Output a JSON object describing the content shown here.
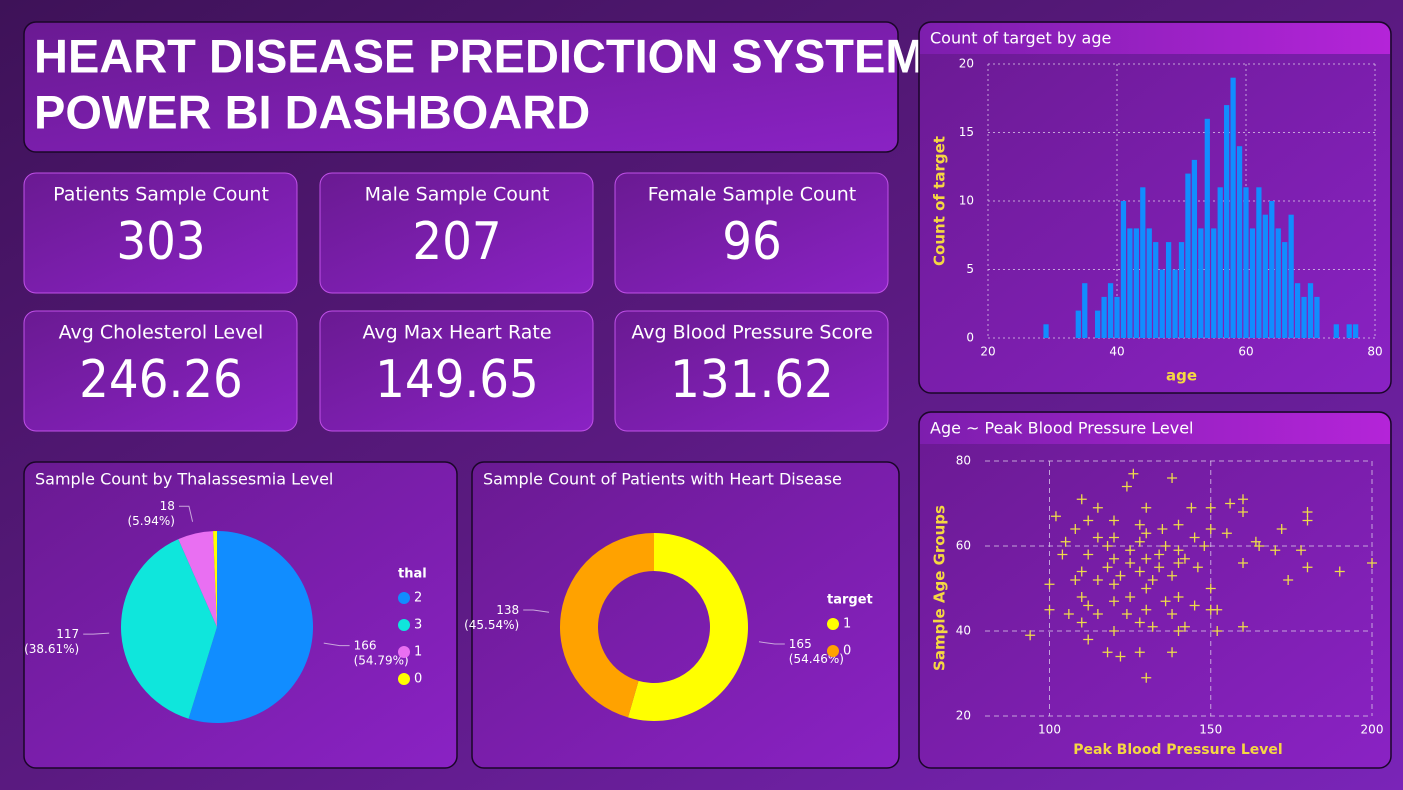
{
  "header": {
    "title_line1": "HEART DISEASE PREDICTION SYSTEM",
    "title_line2": "POWER BI DASHBOARD"
  },
  "cards": [
    {
      "label": "Patients Sample Count",
      "value": 303
    },
    {
      "label": "Male Sample Count",
      "value": 207
    },
    {
      "label": "Female Sample Count",
      "value": 96
    },
    {
      "label": "Avg Cholesterol Level",
      "value": 246.26
    },
    {
      "label": "Avg Max Heart Rate",
      "value": 149.65
    },
    {
      "label": "Avg Blood Pressure Score",
      "value": 131.62
    }
  ],
  "chart_data": [
    {
      "type": "pie",
      "title": "Sample Count by Thalassesmia Level",
      "legend_title": "thal",
      "categories": [
        "2",
        "3",
        "1",
        "0"
      ],
      "values": [
        166,
        117,
        18,
        2
      ],
      "value_labels": [
        "166 (54.79%)",
        "117 (38.61%)",
        "18 (5.94%)",
        null
      ],
      "colors": [
        "#118dff",
        "#0fe6dc",
        "#e96ff2",
        "#ffff00"
      ]
    },
    {
      "type": "donut",
      "title": "Sample Count of Patients with Heart Disease",
      "legend_title": "target",
      "categories": [
        "1",
        "0"
      ],
      "values": [
        165,
        138
      ],
      "value_labels": [
        "165 (54.46%)",
        "138 (45.54%)"
      ],
      "colors": [
        "#ffff00",
        "#ffa200"
      ]
    },
    {
      "type": "histogram",
      "title": "Count of target by age",
      "xlabel": "age",
      "ylabel": "Count of target",
      "color": "#118dff",
      "x": [
        29,
        34,
        35,
        37,
        38,
        39,
        40,
        41,
        42,
        43,
        44,
        45,
        46,
        47,
        48,
        49,
        50,
        51,
        52,
        53,
        54,
        55,
        56,
        57,
        58,
        59,
        60,
        61,
        62,
        63,
        64,
        65,
        66,
        67,
        68,
        69,
        70,
        71,
        74,
        76,
        77
      ],
      "values": [
        1,
        2,
        4,
        2,
        3,
        4,
        3,
        10,
        8,
        8,
        11,
        8,
        7,
        5,
        7,
        5,
        7,
        12,
        13,
        8,
        16,
        8,
        11,
        17,
        19,
        14,
        11,
        8,
        11,
        9,
        10,
        8,
        7,
        9,
        4,
        3,
        4,
        3,
        1,
        1,
        1
      ],
      "xlim": [
        20,
        80
      ],
      "xticks": [
        20,
        40,
        60,
        80
      ],
      "ylim": [
        0,
        20
      ],
      "yticks": [
        0,
        5,
        10,
        15,
        20
      ],
      "grid": true
    },
    {
      "type": "scatter",
      "title": "Age ~ Peak Blood Pressure Level",
      "xlabel": "Peak Blood Pressure Level",
      "ylabel": "Sample Age Groups",
      "color": "#eedc4a",
      "x": [
        94,
        100,
        100,
        102,
        104,
        105,
        106,
        108,
        108,
        110,
        110,
        110,
        110,
        112,
        112,
        112,
        112,
        115,
        115,
        115,
        115,
        118,
        118,
        118,
        120,
        120,
        120,
        120,
        120,
        120,
        122,
        122,
        124,
        124,
        125,
        125,
        125,
        126,
        128,
        128,
        128,
        128,
        128,
        130,
        130,
        130,
        130,
        130,
        130,
        132,
        132,
        134,
        134,
        135,
        136,
        136,
        138,
        138,
        138,
        138,
        140,
        140,
        140,
        140,
        140,
        142,
        142,
        144,
        145,
        145,
        146,
        148,
        150,
        150,
        150,
        150,
        152,
        152,
        155,
        156,
        160,
        160,
        160,
        160,
        164,
        165,
        170,
        172,
        174,
        178,
        180,
        180,
        180,
        190,
        200
      ],
      "values": [
        39,
        51,
        45,
        67,
        58,
        61,
        44,
        52,
        64,
        71,
        48,
        54,
        42,
        66,
        58,
        46,
        38,
        69,
        62,
        52,
        44,
        35,
        60,
        55,
        40,
        47,
        51,
        57,
        62,
        66,
        34,
        53,
        74,
        44,
        59,
        56,
        48,
        77,
        35,
        42,
        54,
        61,
        65,
        29,
        45,
        50,
        57,
        63,
        69,
        52,
        41,
        58,
        55,
        64,
        47,
        60,
        35,
        44,
        53,
        76,
        40,
        48,
        56,
        59,
        65,
        41,
        57,
        69,
        46,
        62,
        55,
        60,
        45,
        50,
        64,
        69,
        45,
        40,
        63,
        70,
        41,
        56,
        68,
        71,
        61,
        60,
        59,
        64,
        52,
        59,
        66,
        55,
        68,
        54,
        56
      ],
      "xlim": [
        80,
        200
      ],
      "xticks": [
        100,
        150,
        200
      ],
      "ylim": [
        20,
        80
      ],
      "yticks": [
        20,
        40,
        60,
        80
      ],
      "grid": true
    }
  ]
}
